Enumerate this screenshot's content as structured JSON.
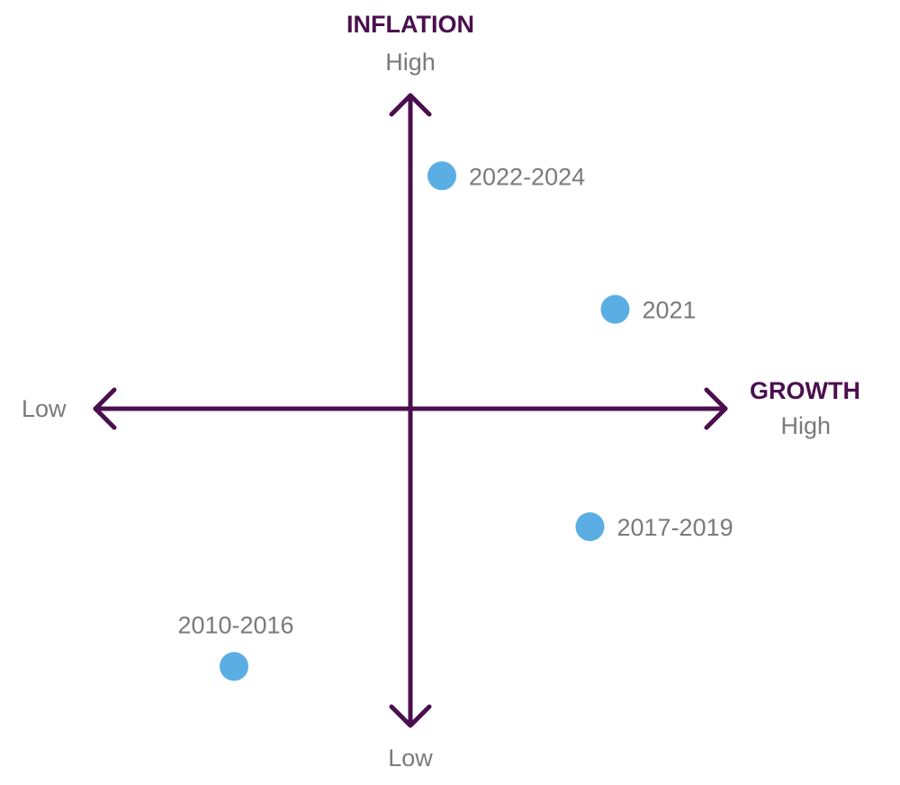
{
  "colors": {
    "axis": "#4a0f4f",
    "point": "#5aaee3",
    "label": "#7a7a7a"
  },
  "axes": {
    "vertical": {
      "title": "INFLATION",
      "high_label": "High",
      "low_label": "Low"
    },
    "horizontal": {
      "title": "GROWTH",
      "high_label": "High",
      "low_label": "Low"
    }
  },
  "points": [
    {
      "label": "2022-2024",
      "growth": 0.1,
      "inflation": 0.75,
      "label_side": "right"
    },
    {
      "label": "2021",
      "growth": 0.65,
      "inflation": 0.32,
      "label_side": "right"
    },
    {
      "label": "2017-2019",
      "growth": 0.57,
      "inflation": -0.38,
      "label_side": "right"
    },
    {
      "label": "2010-2016",
      "growth": -0.56,
      "inflation": -0.83,
      "label_side": "above"
    }
  ]
}
